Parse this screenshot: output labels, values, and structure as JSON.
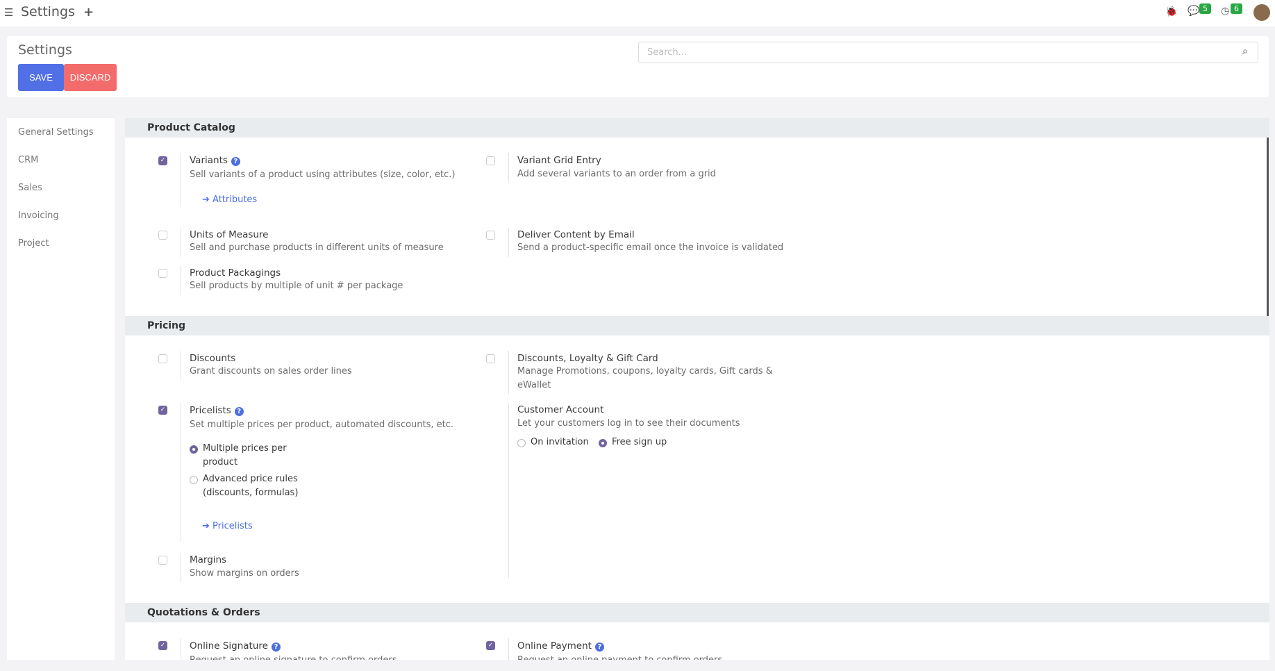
{
  "topbar": {
    "title": "Settings",
    "messages_count": "5",
    "activities_count": "6"
  },
  "control_panel": {
    "title": "Settings",
    "save": "SAVE",
    "discard": "DISCARD",
    "search_placeholder": "Search..."
  },
  "sidebar": {
    "items": [
      {
        "label": "General Settings"
      },
      {
        "label": "CRM"
      },
      {
        "label": "Sales"
      },
      {
        "label": "Invoicing"
      },
      {
        "label": "Project"
      }
    ]
  },
  "sections": {
    "catalog": {
      "title": "Product Catalog",
      "variants": {
        "title": "Variants",
        "desc": "Sell variants of a product using attributes (size, color, etc.)",
        "link": "Attributes",
        "checked": true
      },
      "variant_grid": {
        "title": "Variant Grid Entry",
        "desc": "Add several variants to an order from a grid",
        "checked": false
      },
      "uom": {
        "title": "Units of Measure",
        "desc": "Sell and purchase products in different units of measure",
        "checked": false
      },
      "deliver": {
        "title": "Deliver Content by Email",
        "desc": "Send a product-specific email once the invoice is validated",
        "checked": false
      },
      "packagings": {
        "title": "Product Packagings",
        "desc": "Sell products by multiple of unit # per package",
        "checked": false
      }
    },
    "pricing": {
      "title": "Pricing",
      "discounts": {
        "title": "Discounts",
        "desc": "Grant discounts on sales order lines",
        "checked": false
      },
      "loyalty": {
        "title": "Discounts, Loyalty & Gift Card",
        "desc": "Manage Promotions, coupons, loyalty cards, Gift cards & eWallet",
        "checked": false
      },
      "pricelists": {
        "title": "Pricelists",
        "desc": "Set multiple prices per product, automated discounts, etc.",
        "checked": true,
        "options": [
          "Multiple prices per product",
          "Advanced price rules (discounts, formulas)"
        ],
        "selected": "Multiple prices per product",
        "link": "Pricelists"
      },
      "customer_account": {
        "title": "Customer Account",
        "desc": "Let your customers log in to see their documents",
        "options": [
          "On invitation",
          "Free sign up"
        ],
        "selected": "Free sign up"
      },
      "margins": {
        "title": "Margins",
        "desc": "Show margins on orders",
        "checked": false
      }
    },
    "quotations": {
      "title": "Quotations & Orders",
      "signature": {
        "title": "Online Signature",
        "desc": "Request an online signature to confirm orders",
        "checked": true
      },
      "payment": {
        "title": "Online Payment",
        "desc": "Request an online payment to confirm orders",
        "checked": true
      }
    }
  }
}
